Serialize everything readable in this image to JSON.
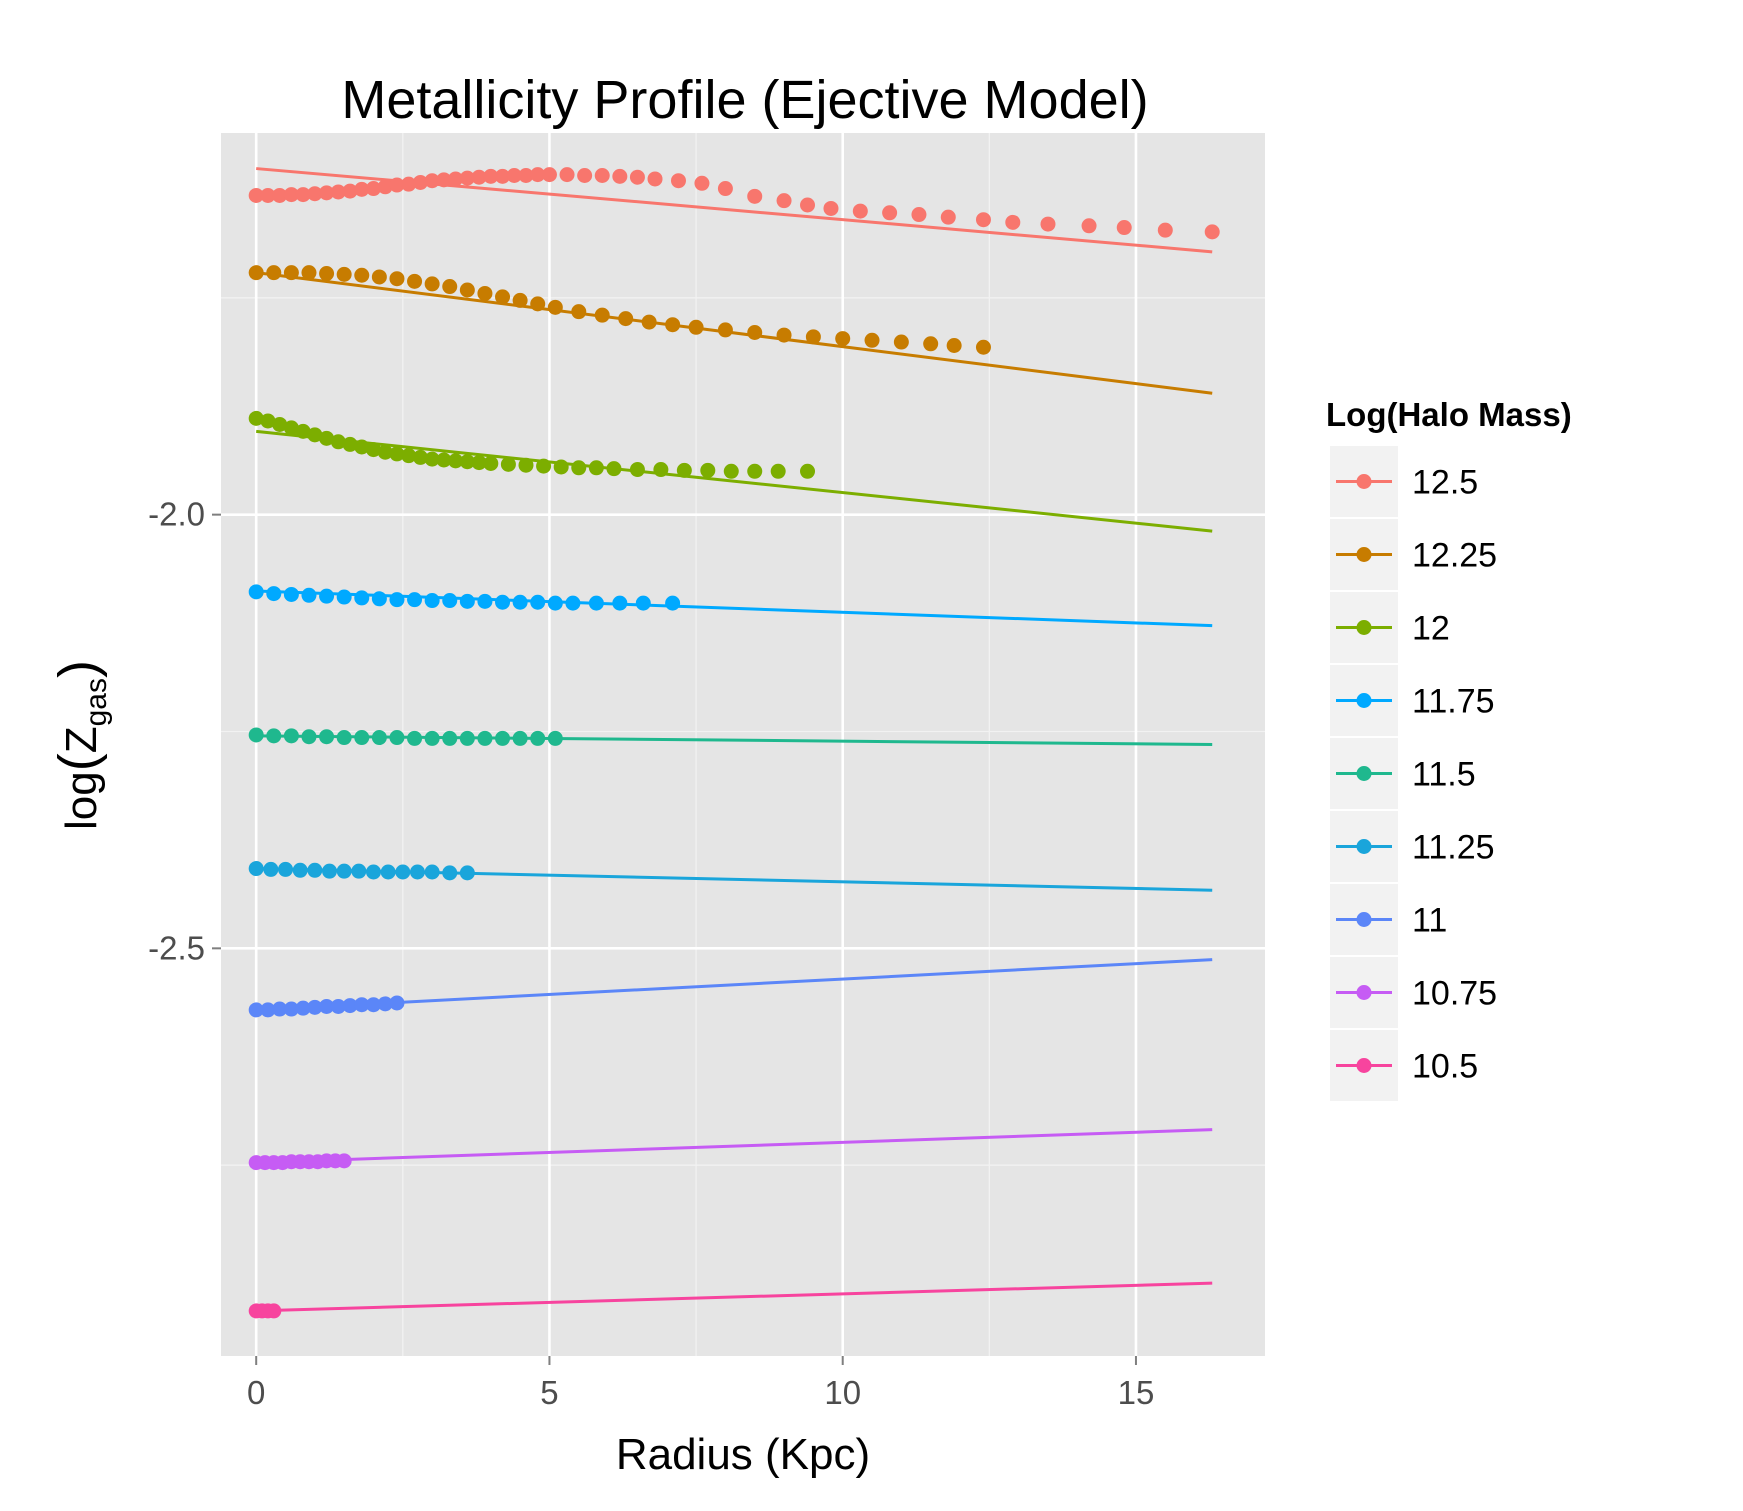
{
  "chart_data": {
    "type": "scatter",
    "title": "Metallicity Profile (Ejective Model)",
    "xlabel": "Radius (Kpc)",
    "ylabel": {
      "main": "log",
      "var": "Z",
      "sub": "gas"
    },
    "xlim": [
      -0.6,
      17.2
    ],
    "ylim": [
      -2.97,
      -1.56
    ],
    "x_ticks": [
      0,
      5,
      10,
      15
    ],
    "x_tick_labels": [
      "0",
      "5",
      "10",
      "15"
    ],
    "x_minor": [
      2.5,
      7.5,
      12.5
    ],
    "y_ticks": [
      -2.0,
      -2.5
    ],
    "y_tick_labels": [
      "-2.0",
      "-2.5"
    ],
    "y_minor": [
      -1.75,
      -2.25,
      -2.75
    ],
    "grid": true,
    "legend": {
      "title": "Log(Halo Mass)",
      "position": "right"
    },
    "series": [
      {
        "name": "12.5",
        "color": "#F8766D",
        "points": [
          [
            0,
            -1.632
          ],
          [
            0.2,
            -1.632
          ],
          [
            0.4,
            -1.632
          ],
          [
            0.6,
            -1.631
          ],
          [
            0.8,
            -1.631
          ],
          [
            1.0,
            -1.63
          ],
          [
            1.2,
            -1.629
          ],
          [
            1.4,
            -1.628
          ],
          [
            1.6,
            -1.627
          ],
          [
            1.8,
            -1.625
          ],
          [
            2.0,
            -1.624
          ],
          [
            2.2,
            -1.622
          ],
          [
            2.4,
            -1.62
          ],
          [
            2.6,
            -1.619
          ],
          [
            2.8,
            -1.617
          ],
          [
            3.0,
            -1.615
          ],
          [
            3.2,
            -1.614
          ],
          [
            3.4,
            -1.613
          ],
          [
            3.6,
            -1.612
          ],
          [
            3.8,
            -1.611
          ],
          [
            4.0,
            -1.61
          ],
          [
            4.2,
            -1.61
          ],
          [
            4.4,
            -1.609
          ],
          [
            4.6,
            -1.609
          ],
          [
            4.8,
            -1.608
          ],
          [
            5.0,
            -1.608
          ],
          [
            5.3,
            -1.608
          ],
          [
            5.6,
            -1.609
          ],
          [
            5.9,
            -1.609
          ],
          [
            6.2,
            -1.61
          ],
          [
            6.5,
            -1.611
          ],
          [
            6.8,
            -1.613
          ],
          [
            7.2,
            -1.615
          ],
          [
            7.6,
            -1.618
          ],
          [
            8.0,
            -1.624
          ],
          [
            8.5,
            -1.633
          ],
          [
            9.0,
            -1.638
          ],
          [
            9.4,
            -1.643
          ],
          [
            9.8,
            -1.647
          ],
          [
            10.3,
            -1.65
          ],
          [
            10.8,
            -1.652
          ],
          [
            11.3,
            -1.654
          ],
          [
            11.8,
            -1.657
          ],
          [
            12.4,
            -1.66
          ],
          [
            12.9,
            -1.663
          ],
          [
            13.5,
            -1.665
          ],
          [
            14.2,
            -1.667
          ],
          [
            14.8,
            -1.669
          ],
          [
            15.5,
            -1.672
          ],
          [
            16.3,
            -1.674
          ]
        ],
        "fit": [
          [
            0,
            -1.601
          ],
          [
            16.3,
            -1.697
          ]
        ]
      },
      {
        "name": "12.25",
        "color": "#C77C00",
        "points": [
          [
            0,
            -1.721
          ],
          [
            0.3,
            -1.721
          ],
          [
            0.6,
            -1.721
          ],
          [
            0.9,
            -1.721
          ],
          [
            1.2,
            -1.722
          ],
          [
            1.5,
            -1.723
          ],
          [
            1.8,
            -1.724
          ],
          [
            2.1,
            -1.726
          ],
          [
            2.4,
            -1.728
          ],
          [
            2.7,
            -1.731
          ],
          [
            3.0,
            -1.734
          ],
          [
            3.3,
            -1.737
          ],
          [
            3.6,
            -1.741
          ],
          [
            3.9,
            -1.745
          ],
          [
            4.2,
            -1.749
          ],
          [
            4.5,
            -1.753
          ],
          [
            4.8,
            -1.757
          ],
          [
            5.1,
            -1.761
          ],
          [
            5.5,
            -1.766
          ],
          [
            5.9,
            -1.77
          ],
          [
            6.3,
            -1.774
          ],
          [
            6.7,
            -1.778
          ],
          [
            7.1,
            -1.781
          ],
          [
            7.5,
            -1.784
          ],
          [
            8.0,
            -1.787
          ],
          [
            8.5,
            -1.79
          ],
          [
            9.0,
            -1.793
          ],
          [
            9.5,
            -1.795
          ],
          [
            10.0,
            -1.797
          ],
          [
            10.5,
            -1.799
          ],
          [
            11.0,
            -1.801
          ],
          [
            11.5,
            -1.803
          ],
          [
            11.9,
            -1.805
          ],
          [
            12.4,
            -1.807
          ]
        ],
        "fit": [
          [
            0,
            -1.721
          ],
          [
            16.3,
            -1.86
          ]
        ]
      },
      {
        "name": "12",
        "color": "#7CAE00",
        "points": [
          [
            0,
            -1.889
          ],
          [
            0.2,
            -1.892
          ],
          [
            0.4,
            -1.896
          ],
          [
            0.6,
            -1.9
          ],
          [
            0.8,
            -1.904
          ],
          [
            1.0,
            -1.908
          ],
          [
            1.2,
            -1.912
          ],
          [
            1.4,
            -1.916
          ],
          [
            1.6,
            -1.919
          ],
          [
            1.8,
            -1.922
          ],
          [
            2.0,
            -1.925
          ],
          [
            2.2,
            -1.928
          ],
          [
            2.4,
            -1.93
          ],
          [
            2.6,
            -1.932
          ],
          [
            2.8,
            -1.934
          ],
          [
            3.0,
            -1.936
          ],
          [
            3.2,
            -1.937
          ],
          [
            3.4,
            -1.938
          ],
          [
            3.6,
            -1.939
          ],
          [
            3.8,
            -1.94
          ],
          [
            4.0,
            -1.941
          ],
          [
            4.3,
            -1.942
          ],
          [
            4.6,
            -1.943
          ],
          [
            4.9,
            -1.944
          ],
          [
            5.2,
            -1.945
          ],
          [
            5.5,
            -1.946
          ],
          [
            5.8,
            -1.946
          ],
          [
            6.1,
            -1.947
          ],
          [
            6.5,
            -1.948
          ],
          [
            6.9,
            -1.948
          ],
          [
            7.3,
            -1.949
          ],
          [
            7.7,
            -1.949
          ],
          [
            8.1,
            -1.95
          ],
          [
            8.5,
            -1.95
          ],
          [
            8.9,
            -1.95
          ],
          [
            9.4,
            -1.95
          ]
        ],
        "fit": [
          [
            0,
            -1.904
          ],
          [
            16.3,
            -2.019
          ]
        ]
      },
      {
        "name": "11.75",
        "color": "#00A9FF",
        "points": [
          [
            0,
            -2.089
          ],
          [
            0.3,
            -2.091
          ],
          [
            0.6,
            -2.092
          ],
          [
            0.9,
            -2.093
          ],
          [
            1.2,
            -2.094
          ],
          [
            1.5,
            -2.095
          ],
          [
            1.8,
            -2.096
          ],
          [
            2.1,
            -2.097
          ],
          [
            2.4,
            -2.098
          ],
          [
            2.7,
            -2.098
          ],
          [
            3.0,
            -2.099
          ],
          [
            3.3,
            -2.099
          ],
          [
            3.6,
            -2.1
          ],
          [
            3.9,
            -2.1
          ],
          [
            4.2,
            -2.101
          ],
          [
            4.5,
            -2.101
          ],
          [
            4.8,
            -2.101
          ],
          [
            5.1,
            -2.102
          ],
          [
            5.4,
            -2.102
          ],
          [
            5.8,
            -2.102
          ],
          [
            6.2,
            -2.102
          ],
          [
            6.6,
            -2.102
          ],
          [
            7.1,
            -2.102
          ]
        ],
        "fit": [
          [
            0,
            -2.088
          ],
          [
            16.3,
            -2.128
          ]
        ]
      },
      {
        "name": "11.5",
        "color": "#1FB88E",
        "points": [
          [
            0,
            -2.254
          ],
          [
            0.3,
            -2.255
          ],
          [
            0.6,
            -2.255
          ],
          [
            0.9,
            -2.256
          ],
          [
            1.2,
            -2.256
          ],
          [
            1.5,
            -2.257
          ],
          [
            1.8,
            -2.257
          ],
          [
            2.1,
            -2.257
          ],
          [
            2.4,
            -2.257
          ],
          [
            2.7,
            -2.258
          ],
          [
            3.0,
            -2.258
          ],
          [
            3.3,
            -2.258
          ],
          [
            3.6,
            -2.258
          ],
          [
            3.9,
            -2.258
          ],
          [
            4.2,
            -2.258
          ],
          [
            4.5,
            -2.258
          ],
          [
            4.8,
            -2.258
          ],
          [
            5.1,
            -2.258
          ]
        ],
        "fit": [
          [
            0,
            -2.255
          ],
          [
            16.3,
            -2.265
          ]
        ]
      },
      {
        "name": "11.25",
        "color": "#1AA5DB",
        "points": [
          [
            0,
            -2.408
          ],
          [
            0.25,
            -2.409
          ],
          [
            0.5,
            -2.409
          ],
          [
            0.75,
            -2.41
          ],
          [
            1.0,
            -2.41
          ],
          [
            1.25,
            -2.411
          ],
          [
            1.5,
            -2.411
          ],
          [
            1.75,
            -2.411
          ],
          [
            2.0,
            -2.412
          ],
          [
            2.25,
            -2.412
          ],
          [
            2.5,
            -2.412
          ],
          [
            2.75,
            -2.412
          ],
          [
            3.0,
            -2.412
          ],
          [
            3.3,
            -2.413
          ],
          [
            3.6,
            -2.413
          ]
        ],
        "fit": [
          [
            0,
            -2.408
          ],
          [
            16.3,
            -2.433
          ]
        ]
      },
      {
        "name": "11",
        "color": "#5B86F8",
        "points": [
          [
            0,
            -2.571
          ],
          [
            0.2,
            -2.571
          ],
          [
            0.4,
            -2.57
          ],
          [
            0.6,
            -2.57
          ],
          [
            0.8,
            -2.569
          ],
          [
            1.0,
            -2.568
          ],
          [
            1.2,
            -2.567
          ],
          [
            1.4,
            -2.567
          ],
          [
            1.6,
            -2.566
          ],
          [
            1.8,
            -2.565
          ],
          [
            2.0,
            -2.565
          ],
          [
            2.2,
            -2.564
          ],
          [
            2.4,
            -2.563
          ]
        ],
        "fit": [
          [
            0,
            -2.571
          ],
          [
            16.3,
            -2.513
          ]
        ]
      },
      {
        "name": "10.75",
        "color": "#C65CF4",
        "points": [
          [
            0,
            -2.747
          ],
          [
            0.15,
            -2.747
          ],
          [
            0.3,
            -2.747
          ],
          [
            0.45,
            -2.747
          ],
          [
            0.6,
            -2.746
          ],
          [
            0.75,
            -2.746
          ],
          [
            0.9,
            -2.746
          ],
          [
            1.05,
            -2.746
          ],
          [
            1.2,
            -2.745
          ],
          [
            1.35,
            -2.745
          ],
          [
            1.5,
            -2.745
          ]
        ],
        "fit": [
          [
            0,
            -2.747
          ],
          [
            16.3,
            -2.709
          ]
        ]
      },
      {
        "name": "10.5",
        "color": "#F7449E",
        "points": [
          [
            0,
            -2.918
          ],
          [
            0.1,
            -2.918
          ],
          [
            0.2,
            -2.918
          ],
          [
            0.3,
            -2.918
          ]
        ],
        "fit": [
          [
            0,
            -2.918
          ],
          [
            16.3,
            -2.886
          ]
        ]
      }
    ]
  }
}
